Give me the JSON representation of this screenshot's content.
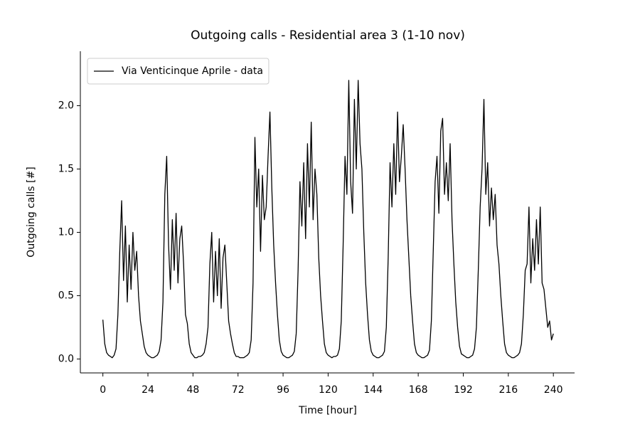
{
  "chart_data": {
    "type": "line",
    "title": "Outgoing calls - Residential area 3 (1-10 nov)",
    "x_label": "Time [hour]",
    "y_label": "Outgoing calls [#]",
    "legend": "upper left",
    "x": [
      0,
      1,
      2,
      3,
      4,
      5,
      6,
      7,
      8,
      9,
      10,
      11,
      12,
      13,
      14,
      15,
      16,
      17,
      18,
      19,
      20,
      21,
      22,
      23,
      24,
      25,
      26,
      27,
      28,
      29,
      30,
      31,
      32,
      33,
      34,
      35,
      36,
      37,
      38,
      39,
      40,
      41,
      42,
      43,
      44,
      45,
      46,
      47,
      48,
      49,
      50,
      51,
      52,
      53,
      54,
      55,
      56,
      57,
      58,
      59,
      60,
      61,
      62,
      63,
      64,
      65,
      66,
      67,
      68,
      69,
      70,
      71,
      72,
      73,
      74,
      75,
      76,
      77,
      78,
      79,
      80,
      81,
      82,
      83,
      84,
      85,
      86,
      87,
      88,
      89,
      90,
      91,
      92,
      93,
      94,
      95,
      96,
      97,
      98,
      99,
      100,
      101,
      102,
      103,
      104,
      105,
      106,
      107,
      108,
      109,
      110,
      111,
      112,
      113,
      114,
      115,
      116,
      117,
      118,
      119,
      120,
      121,
      122,
      123,
      124,
      125,
      126,
      127,
      128,
      129,
      130,
      131,
      132,
      133,
      134,
      135,
      136,
      137,
      138,
      139,
      140,
      141,
      142,
      143,
      144,
      145,
      146,
      147,
      148,
      149,
      150,
      151,
      152,
      153,
      154,
      155,
      156,
      157,
      158,
      159,
      160,
      161,
      162,
      163,
      164,
      165,
      166,
      167,
      168,
      169,
      170,
      171,
      172,
      173,
      174,
      175,
      176,
      177,
      178,
      179,
      180,
      181,
      182,
      183,
      184,
      185,
      186,
      187,
      188,
      189,
      190,
      191,
      192,
      193,
      194,
      195,
      196,
      197,
      198,
      199,
      200,
      201,
      202,
      203,
      204,
      205,
      206,
      207,
      208,
      209,
      210,
      211,
      212,
      213,
      214,
      215,
      216,
      217,
      218,
      219,
      220,
      221,
      222,
      223,
      224,
      225,
      226,
      227,
      228,
      229,
      230,
      231,
      232,
      233,
      234,
      235,
      236,
      237,
      238,
      239,
      240
    ],
    "series": [
      {
        "name": "Via Venticinque Aprile - data",
        "color": "#000000",
        "values": [
          0.31,
          0.12,
          0.05,
          0.03,
          0.02,
          0.01,
          0.03,
          0.08,
          0.35,
          0.85,
          1.25,
          0.62,
          1.05,
          0.45,
          0.9,
          0.55,
          1.0,
          0.7,
          0.85,
          0.5,
          0.3,
          0.2,
          0.1,
          0.05,
          0.03,
          0.02,
          0.01,
          0.01,
          0.02,
          0.03,
          0.06,
          0.15,
          0.45,
          1.3,
          1.6,
          0.9,
          0.55,
          1.1,
          0.7,
          1.15,
          0.6,
          0.95,
          1.05,
          0.75,
          0.35,
          0.28,
          0.12,
          0.05,
          0.03,
          0.01,
          0.01,
          0.02,
          0.02,
          0.03,
          0.05,
          0.12,
          0.25,
          0.75,
          1.0,
          0.45,
          0.85,
          0.5,
          0.95,
          0.4,
          0.8,
          0.9,
          0.6,
          0.3,
          0.2,
          0.12,
          0.05,
          0.02,
          0.02,
          0.01,
          0.01,
          0.01,
          0.02,
          0.03,
          0.05,
          0.15,
          0.6,
          1.75,
          1.2,
          1.5,
          0.85,
          1.45,
          1.1,
          1.2,
          1.6,
          1.95,
          1.35,
          0.9,
          0.6,
          0.35,
          0.15,
          0.06,
          0.03,
          0.02,
          0.01,
          0.01,
          0.02,
          0.03,
          0.06,
          0.2,
          0.7,
          1.4,
          1.05,
          1.55,
          0.95,
          1.7,
          1.2,
          1.87,
          1.1,
          1.5,
          1.3,
          0.8,
          0.5,
          0.3,
          0.12,
          0.05,
          0.03,
          0.02,
          0.01,
          0.02,
          0.02,
          0.03,
          0.08,
          0.3,
          0.9,
          1.6,
          1.3,
          2.2,
          1.4,
          1.15,
          2.05,
          1.5,
          2.2,
          1.7,
          1.5,
          1.0,
          0.6,
          0.35,
          0.15,
          0.06,
          0.03,
          0.02,
          0.01,
          0.01,
          0.02,
          0.03,
          0.06,
          0.25,
          0.8,
          1.55,
          1.2,
          1.7,
          1.3,
          1.95,
          1.4,
          1.6,
          1.85,
          1.5,
          1.1,
          0.8,
          0.5,
          0.3,
          0.12,
          0.05,
          0.03,
          0.02,
          0.01,
          0.01,
          0.02,
          0.03,
          0.07,
          0.3,
          0.85,
          1.4,
          1.6,
          1.15,
          1.8,
          1.9,
          1.3,
          1.55,
          1.25,
          1.7,
          1.1,
          0.75,
          0.45,
          0.25,
          0.1,
          0.04,
          0.03,
          0.02,
          0.01,
          0.01,
          0.02,
          0.03,
          0.08,
          0.25,
          0.7,
          1.2,
          1.5,
          2.05,
          1.3,
          1.55,
          1.05,
          1.35,
          1.1,
          1.3,
          0.9,
          0.75,
          0.5,
          0.3,
          0.12,
          0.05,
          0.03,
          0.02,
          0.01,
          0.01,
          0.02,
          0.03,
          0.05,
          0.12,
          0.35,
          0.7,
          0.75,
          1.2,
          0.6,
          0.95,
          0.7,
          1.1,
          0.75,
          1.2,
          0.6,
          0.55,
          0.4,
          0.25,
          0.3,
          0.15,
          0.2
        ]
      }
    ],
    "xlim": [
      -12,
      251.3
    ],
    "ylim": [
      -0.11,
      2.43
    ],
    "xticks": [
      0,
      24,
      48,
      72,
      96,
      120,
      144,
      168,
      192,
      216,
      240
    ],
    "yticks": [
      {
        "value": 0,
        "label": "0.0"
      },
      0.5,
      {
        "value": 1,
        "label": "1.0"
      },
      1.5,
      {
        "value": 2,
        "label": "2.0"
      }
    ]
  }
}
